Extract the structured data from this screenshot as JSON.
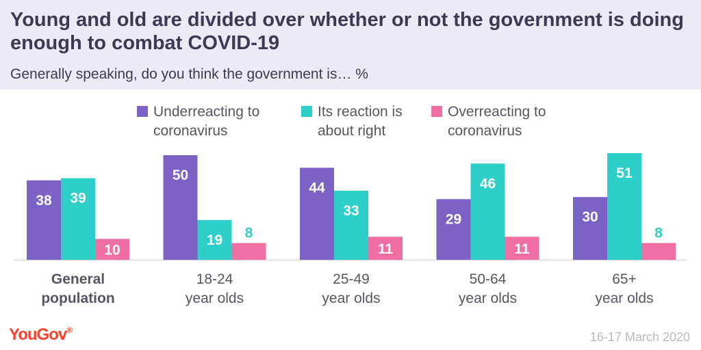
{
  "header": {
    "title": "Young and old are divided over whether or not the government is doing enough to combat COVID-19",
    "subtitle": "Generally speaking, do you think the government is… %"
  },
  "legend": [
    {
      "label": "Underreacting to coronavirus",
      "color": "#7b63c6"
    },
    {
      "label": "Its reaction is about right",
      "color": "#2dcfc8"
    },
    {
      "label": "Overreacting to coronavirus",
      "color": "#f06fa2"
    }
  ],
  "chart_data": {
    "type": "bar",
    "title": "Young and old are divided over whether or not the government is doing enough to combat COVID-19",
    "subtitle": "Generally speaking, do you think the government is… %",
    "categories": [
      [
        "General",
        "population"
      ],
      [
        "18-24",
        "year olds"
      ],
      [
        "25-49",
        "year olds"
      ],
      [
        "50-64",
        "year olds"
      ],
      [
        "65+",
        "year olds"
      ]
    ],
    "bold_categories": [
      0
    ],
    "series": [
      {
        "name": "Underreacting to coronavirus",
        "color": "#7b63c6",
        "values": [
          38,
          50,
          44,
          29,
          30
        ]
      },
      {
        "name": "Its reaction is about right",
        "color": "#2dcfc8",
        "values": [
          39,
          19,
          33,
          46,
          51
        ]
      },
      {
        "name": "Overreacting to coronavirus",
        "color": "#f06fa2",
        "values": [
          10,
          8,
          11,
          11,
          8
        ]
      }
    ],
    "ylim": [
      0,
      51
    ],
    "grid": false,
    "legend_position": "top"
  },
  "footer": {
    "brand": "YouGov",
    "brand_mark": "®",
    "date": "16-17 March 2020"
  }
}
